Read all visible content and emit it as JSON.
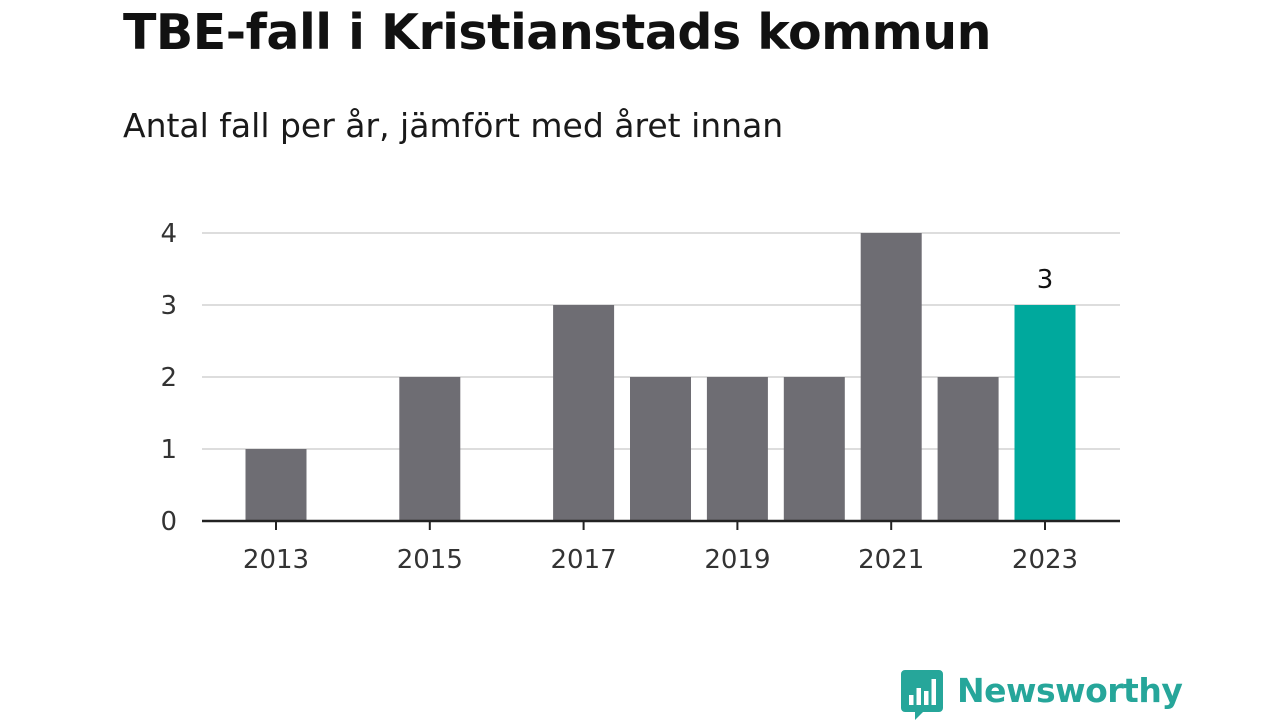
{
  "chart_data": {
    "type": "bar",
    "title": "TBE-fall i Kristianstads kommun",
    "subtitle": "Antal fall per år, jämfört med året innan",
    "categories": [
      "2013",
      "2014",
      "2015",
      "2016",
      "2017",
      "2018",
      "2019",
      "2020",
      "2021",
      "2022",
      "2023"
    ],
    "values": [
      1,
      0,
      2,
      0,
      3,
      2,
      2,
      2,
      4,
      2,
      3
    ],
    "x_tick_labels": [
      "2013",
      "2015",
      "2017",
      "2019",
      "2021",
      "2023"
    ],
    "y_ticks": [
      "0",
      "1",
      "2",
      "3",
      "4"
    ],
    "ylim": [
      0,
      4
    ],
    "xlabel": "",
    "ylabel": "",
    "grid": true,
    "highlight": {
      "category": "2023",
      "label": "3"
    },
    "colors": {
      "bar": "#6e6d73",
      "highlight": "#00a99d",
      "grid": "#dddddd",
      "axis": "#222222"
    }
  },
  "brand": {
    "name": "Newsworthy",
    "icon": "bar-chart-speech-bubble-icon",
    "color": "#26a69a"
  }
}
